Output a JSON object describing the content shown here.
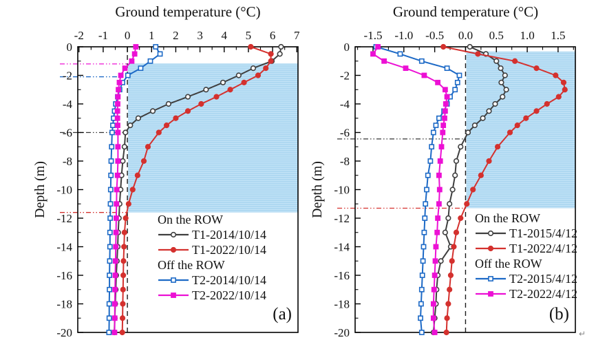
{
  "artifact": {
    "return_mark": "↵"
  },
  "chart_data": [
    {
      "type": "line",
      "panel_label": "(a)",
      "title": "Ground temperature (°C)",
      "xlabel": "Ground temperature (°C)",
      "ylabel": "Depth (m)",
      "xlim": [
        -2.05,
        7.05
      ],
      "ylim": [
        -20,
        0
      ],
      "x_major_ticks": [
        -2,
        -1,
        0,
        1,
        2,
        3,
        4,
        5,
        6,
        7
      ],
      "x_tick_labels": [
        "-2",
        "-1",
        "0",
        "1",
        "2",
        "3",
        "4",
        "5",
        "6",
        "7"
      ],
      "x_minor_step": 0.5,
      "y_major_ticks": [
        0,
        -2,
        -4,
        -6,
        -8,
        -10,
        -12,
        -14,
        -16,
        -18,
        -20
      ],
      "y_tick_labels": [
        "0",
        "-2",
        "-4",
        "-6",
        "-8",
        "-10",
        "-12",
        "-14",
        "-16",
        "-18",
        "-20"
      ],
      "y_minor_step": 1,
      "grid": false,
      "legend_position": "inside-bottom-center",
      "zero_reference_line": {
        "x": 0,
        "style": "dashed",
        "color": "#1a1a1a"
      },
      "shaded_region": {
        "color": "#aed8f1",
        "x_range": [
          0,
          7.05
        ],
        "depth_range": [
          -1.17,
          -11.6
        ]
      },
      "depth_marker_lines": [
        {
          "depth": -1.2,
          "color": "#ec10d4",
          "style": "dash-dot",
          "series": "T2-2022/10/14"
        },
        {
          "depth": -2.1,
          "color": "#1c69c6",
          "style": "dash-dot",
          "series": "T2-2014/10/14"
        },
        {
          "depth": -6.0,
          "color": "#333333",
          "style": "dash-dot",
          "series": "T1-2014/10/14"
        },
        {
          "depth": -11.6,
          "color": "#d4312e",
          "style": "dash-dot",
          "series": "T1-2022/10/14"
        }
      ],
      "legend_groups": [
        {
          "header": "On the ROW",
          "items": [
            "T1-2014/10/14",
            "T1-2022/10/14"
          ]
        },
        {
          "header": "Off the ROW",
          "items": [
            "T2-2014/10/14",
            "T2-2022/10/14"
          ]
        }
      ],
      "depths": [
        0,
        -0.5,
        -1,
        -1.5,
        -2,
        -2.5,
        -3,
        -3.5,
        -4,
        -4.5,
        -5,
        -5.5,
        -6,
        -7,
        -8,
        -9,
        -10,
        -11,
        -12,
        -13,
        -14,
        -15,
        -16,
        -17,
        -18,
        -19,
        -20
      ],
      "series": [
        {
          "name": "T1-2014/10/14",
          "color": "#3f3f3f",
          "marker": "open-circle",
          "values": [
            6.35,
            6.3,
            5.97,
            5.2,
            4.6,
            3.95,
            3.25,
            2.5,
            1.7,
            1.05,
            0.45,
            0.12,
            -0.08,
            -0.12,
            -0.19,
            -0.24,
            -0.28,
            -0.32,
            -0.35,
            -0.38,
            -0.4,
            -0.43,
            -0.46,
            -0.48,
            -0.5,
            -0.52,
            -0.54
          ]
        },
        {
          "name": "T1-2022/10/14",
          "color": "#d4312e",
          "marker": "filled-circle",
          "values": [
            5.1,
            5.93,
            5.93,
            5.72,
            5.4,
            4.82,
            4.25,
            3.68,
            3.05,
            2.5,
            2.0,
            1.62,
            1.3,
            0.85,
            0.68,
            0.42,
            0.22,
            0.05,
            -0.07,
            -0.12,
            -0.14,
            -0.16,
            -0.17,
            -0.18,
            -0.19,
            -0.2,
            -0.21
          ]
        },
        {
          "name": "T2-2014/10/14",
          "color": "#1c69c6",
          "marker": "open-square",
          "values": [
            1.17,
            1.35,
            0.95,
            0.55,
            0.02,
            -0.2,
            -0.32,
            -0.4,
            -0.48,
            -0.53,
            -0.57,
            -0.6,
            -0.63,
            -0.65,
            -0.67,
            -0.68,
            -0.69,
            -0.7,
            -0.71,
            -0.72,
            -0.72,
            -0.73,
            -0.74,
            -0.74,
            -0.75,
            -0.75,
            -0.76
          ]
        },
        {
          "name": "T2-2022/10/14",
          "color": "#ec10d4",
          "marker": "filled-square",
          "values": [
            0.35,
            0.3,
            0.18,
            -0.1,
            -0.27,
            -0.33,
            -0.37,
            -0.39,
            -0.4,
            -0.41,
            -0.41,
            -0.4,
            -0.39,
            -0.39,
            -0.39,
            -0.41,
            -0.44,
            -0.45,
            -0.46,
            -0.47,
            -0.48,
            -0.49,
            -0.5,
            -0.51,
            -0.52,
            -0.52,
            -0.53
          ]
        }
      ]
    },
    {
      "type": "line",
      "panel_label": "(b)",
      "title": "Ground temperature (°C)",
      "xlabel": "Ground temperature (°C)",
      "ylabel": "Depth (m)",
      "xlim": [
        -1.79,
        1.78
      ],
      "ylim": [
        -20,
        0
      ],
      "x_major_ticks": [
        -1.5,
        -1.0,
        -0.5,
        0.0,
        0.5,
        1.0,
        1.5
      ],
      "x_tick_labels": [
        "-1.5",
        "-1.0",
        "-0.5",
        "0.0",
        "0.5",
        "1.0",
        "1.5"
      ],
      "x_minor_step": 0.25,
      "y_major_ticks": [
        0,
        -2,
        -4,
        -6,
        -8,
        -10,
        -12,
        -14,
        -16,
        -18,
        -20
      ],
      "y_tick_labels": [
        "0",
        "-2",
        "-4",
        "-6",
        "-8",
        "-10",
        "-12",
        "-14",
        "-16",
        "-18",
        "-20"
      ],
      "y_minor_step": 1,
      "grid": false,
      "legend_position": "inside-bottom-center",
      "zero_reference_line": {
        "x": 0,
        "style": "dashed",
        "color": "#1a1a1a"
      },
      "shaded_region": {
        "color": "#aed8f1",
        "x_range": [
          0,
          1.78
        ],
        "depth_range": [
          -0.33,
          -11.3
        ]
      },
      "depth_marker_lines": [
        {
          "depth": -6.45,
          "color": "#333333",
          "style": "dash-dot",
          "series": "T1-2015/4/12"
        },
        {
          "depth": -11.3,
          "color": "#d4312e",
          "style": "dash-dot",
          "series": "T1-2022/4/12"
        }
      ],
      "legend_groups": [
        {
          "header": "On the ROW",
          "items": [
            "T1-2015/4/12",
            "T1-2022/4/12"
          ]
        },
        {
          "header": "Off the ROW",
          "items": [
            "T2-2015/4/12",
            "T2-2022/4/12"
          ]
        }
      ],
      "depths": [
        0,
        -0.5,
        -1,
        -1.5,
        -2,
        -2.5,
        -3,
        -3.5,
        -4,
        -4.5,
        -5,
        -5.5,
        -6,
        -7,
        -8,
        -9,
        -10,
        -11,
        -12,
        -13,
        -14,
        -15,
        -16,
        -17,
        -18,
        -19,
        -20
      ],
      "series": [
        {
          "name": "T1-2015/4/12",
          "color": "#3f3f3f",
          "marker": "open-circle",
          "values": [
            0.07,
            0.33,
            0.5,
            0.57,
            0.64,
            0.58,
            0.66,
            0.6,
            0.48,
            0.38,
            0.28,
            0.15,
            0.04,
            -0.08,
            -0.15,
            -0.17,
            -0.21,
            -0.26,
            -0.28,
            -0.33,
            -0.24,
            -0.4,
            -0.45,
            -0.47,
            -0.48,
            -0.5,
            -0.52
          ]
        },
        {
          "name": "T1-2022/4/12",
          "color": "#d4312e",
          "marker": "filled-circle",
          "values": [
            -0.36,
            0.2,
            0.8,
            1.15,
            1.46,
            1.59,
            1.61,
            1.51,
            1.32,
            1.15,
            0.98,
            0.84,
            0.72,
            0.52,
            0.38,
            0.25,
            0.12,
            0.02,
            -0.08,
            -0.15,
            -0.19,
            -0.22,
            -0.24,
            -0.26,
            -0.28,
            -0.3,
            -0.31
          ]
        },
        {
          "name": "T2-2015/4/12",
          "color": "#1c69c6",
          "marker": "open-square",
          "values": [
            -1.45,
            -1.06,
            -0.71,
            -0.3,
            -0.1,
            -0.13,
            -0.17,
            -0.25,
            -0.3,
            -0.35,
            -0.43,
            -0.48,
            -0.52,
            -0.55,
            -0.57,
            -0.61,
            -0.63,
            -0.65,
            -0.66,
            -0.67,
            -0.68,
            -0.69,
            -0.7,
            -0.71,
            -0.72,
            -0.73,
            -0.71
          ]
        },
        {
          "name": "T2-2022/4/12",
          "color": "#ec10d4",
          "marker": "filled-square",
          "values": [
            -1.42,
            -1.5,
            -1.32,
            -0.97,
            -0.67,
            -0.45,
            -0.33,
            -0.3,
            -0.32,
            -0.33,
            -0.34,
            -0.36,
            -0.37,
            -0.39,
            -0.41,
            -0.43,
            -0.42,
            -0.43,
            -0.45,
            -0.46,
            -0.48,
            -0.49,
            -0.5,
            -0.51,
            -0.52,
            -0.52,
            -0.5
          ]
        }
      ]
    }
  ]
}
